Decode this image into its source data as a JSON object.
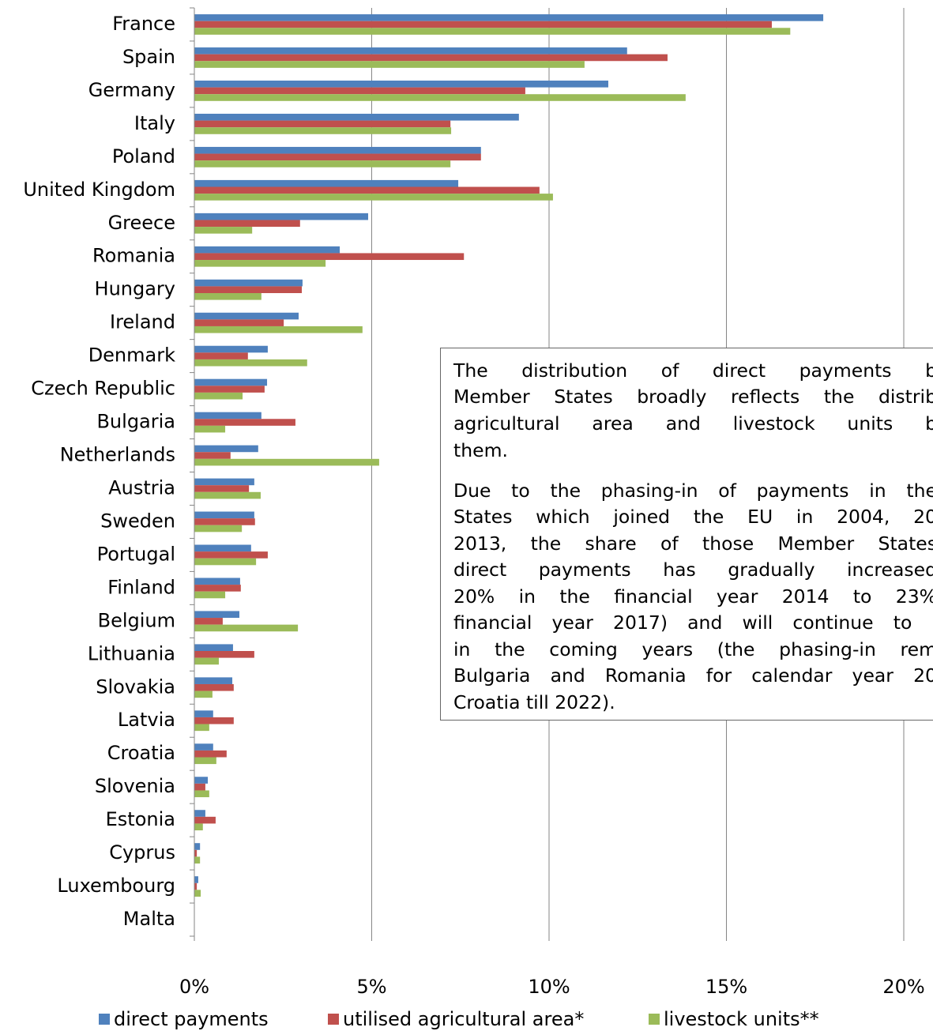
{
  "chart_data": {
    "type": "bar",
    "orientation": "horizontal",
    "categories": [
      "France",
      "Spain",
      "Germany",
      "Italy",
      "Poland",
      "United Kingdom",
      "Greece",
      "Romania",
      "Hungary",
      "Ireland",
      "Denmark",
      "Czech Republic",
      "Bulgaria",
      "Netherlands",
      "Austria",
      "Sweden",
      "Portugal",
      "Finland",
      "Belgium",
      "Lithuania",
      "Slovakia",
      "Latvia",
      "Croatia",
      "Slovenia",
      "Estonia",
      "Cyprus",
      "Luxembourg",
      "Malta"
    ],
    "series": [
      {
        "name": "direct payments",
        "color": "#4f81bd",
        "values": [
          17.73,
          12.2,
          11.67,
          9.15,
          8.08,
          7.44,
          4.9,
          4.1,
          3.05,
          2.94,
          2.07,
          2.05,
          1.89,
          1.8,
          1.69,
          1.69,
          1.6,
          1.29,
          1.27,
          1.09,
          1.07,
          0.53,
          0.53,
          0.38,
          0.31,
          0.16,
          0.11,
          0
        ]
      },
      {
        "name": "utilised agricultural area*",
        "color": "#c0504d",
        "values": [
          16.28,
          13.34,
          9.33,
          7.22,
          8.08,
          9.73,
          2.98,
          7.6,
          3.03,
          2.52,
          1.51,
          1.98,
          2.85,
          1.02,
          1.54,
          1.71,
          2.07,
          1.31,
          0.8,
          1.69,
          1.11,
          1.11,
          0.91,
          0.31,
          0.6,
          0.07,
          0.07,
          0
        ]
      },
      {
        "name": "livestock units**",
        "color": "#9bbb59",
        "values": [
          16.8,
          11.0,
          13.85,
          7.24,
          7.22,
          10.11,
          1.63,
          3.7,
          1.89,
          4.74,
          3.18,
          1.36,
          0.87,
          5.21,
          1.87,
          1.34,
          1.74,
          0.87,
          2.92,
          0.69,
          0.51,
          0.42,
          0.62,
          0.42,
          0.24,
          0.16,
          0.18,
          0
        ]
      }
    ],
    "xlim": [
      0,
      20
    ],
    "xticks": [
      {
        "value": 0,
        "label": "0%"
      },
      {
        "value": 5,
        "label": "5%"
      },
      {
        "value": 10,
        "label": "10%"
      },
      {
        "value": 15,
        "label": "15%"
      },
      {
        "value": 20,
        "label": "20%"
      }
    ],
    "grid": true,
    "legend": "bottom",
    "annotation": [
      {
        "text": "The distribution of direct payments b",
        "justify": true
      },
      {
        "text": "Member States broadly reflects the distrib",
        "justify": true
      },
      {
        "text": "agricultural area and livestock units b",
        "justify": true
      },
      {
        "text": "them.",
        "justify": false
      },
      {
        "text": "Due to the phasing-in of payments in the",
        "justify": true
      },
      {
        "text": "States which joined the EU in 2004, 20",
        "justify": true
      },
      {
        "text": "2013, the share of those Member States",
        "justify": true
      },
      {
        "text": "direct payments has gradually increased",
        "justify": true
      },
      {
        "text": "20% in the financial year 2014 to 23%",
        "justify": true
      },
      {
        "text": "financial year 2017) and will continue to i",
        "justify": true
      },
      {
        "text": "in the coming years (the phasing-in rem",
        "justify": true
      },
      {
        "text": "Bulgaria and Romania for calendar year 20",
        "justify": true
      },
      {
        "text": "Croatia till 2022).",
        "justify": false
      }
    ]
  }
}
